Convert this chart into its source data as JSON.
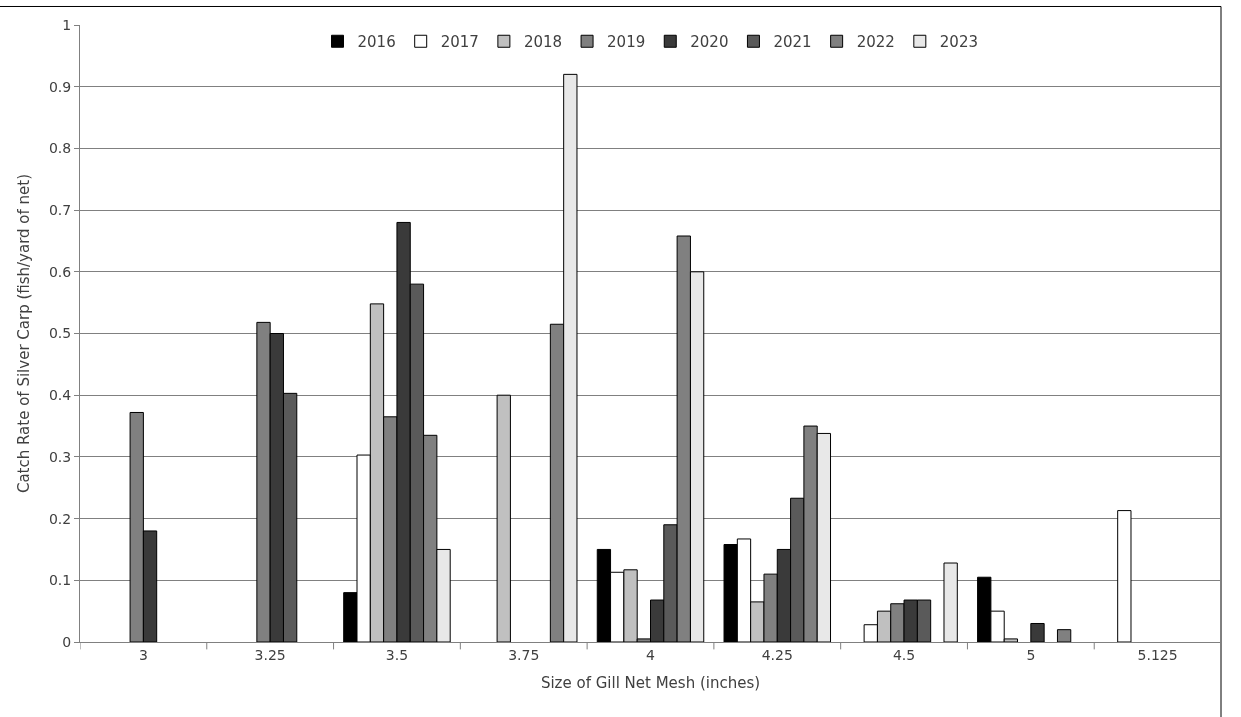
{
  "chart_data": {
    "type": "bar",
    "xlabel": "Size of Gill Net Mesh (inches)",
    "ylabel": "Catch Rate of Silver Carp (fish/yard of net)",
    "categories": [
      "3",
      "3.25",
      "3.5",
      "3.75",
      "4",
      "4.25",
      "4.5",
      "5",
      "5.125"
    ],
    "series": [
      {
        "name": "2016",
        "color": "#000000",
        "values": [
          null,
          null,
          0.08,
          null,
          0.15,
          0.158,
          null,
          0.105,
          null
        ]
      },
      {
        "name": "2017",
        "color": "#ffffff",
        "values": [
          null,
          null,
          0.303,
          null,
          0.113,
          0.167,
          0.028,
          0.05,
          0.213
        ]
      },
      {
        "name": "2018",
        "color": "#c0c0c0",
        "values": [
          null,
          null,
          0.548,
          0.4,
          0.117,
          0.065,
          0.05,
          0.005,
          null
        ]
      },
      {
        "name": "2019",
        "color": "#808080",
        "values": [
          0.372,
          0.518,
          0.365,
          null,
          0.005,
          0.11,
          0.062,
          null,
          null
        ]
      },
      {
        "name": "2020",
        "color": "#3a3a3a",
        "values": [
          0.18,
          0.5,
          0.68,
          null,
          0.068,
          0.15,
          0.068,
          0.03,
          null
        ]
      },
      {
        "name": "2021",
        "color": "#5a5a5a",
        "values": [
          null,
          0.403,
          0.58,
          null,
          0.19,
          0.233,
          0.068,
          null,
          null
        ]
      },
      {
        "name": "2022",
        "color": "#808080",
        "values": [
          null,
          null,
          0.335,
          0.515,
          0.658,
          0.35,
          null,
          0.02,
          null
        ]
      },
      {
        "name": "2023",
        "color": "#e8e8e8",
        "values": [
          null,
          null,
          0.15,
          0.92,
          0.6,
          0.338,
          0.128,
          null,
          null
        ]
      }
    ],
    "ylim": [
      0,
      1
    ],
    "yticks": [
      0,
      0.1,
      0.2,
      0.3,
      0.4,
      0.5,
      0.6,
      0.7,
      0.8,
      0.9,
      1
    ],
    "grid": "y",
    "legend": "top"
  }
}
